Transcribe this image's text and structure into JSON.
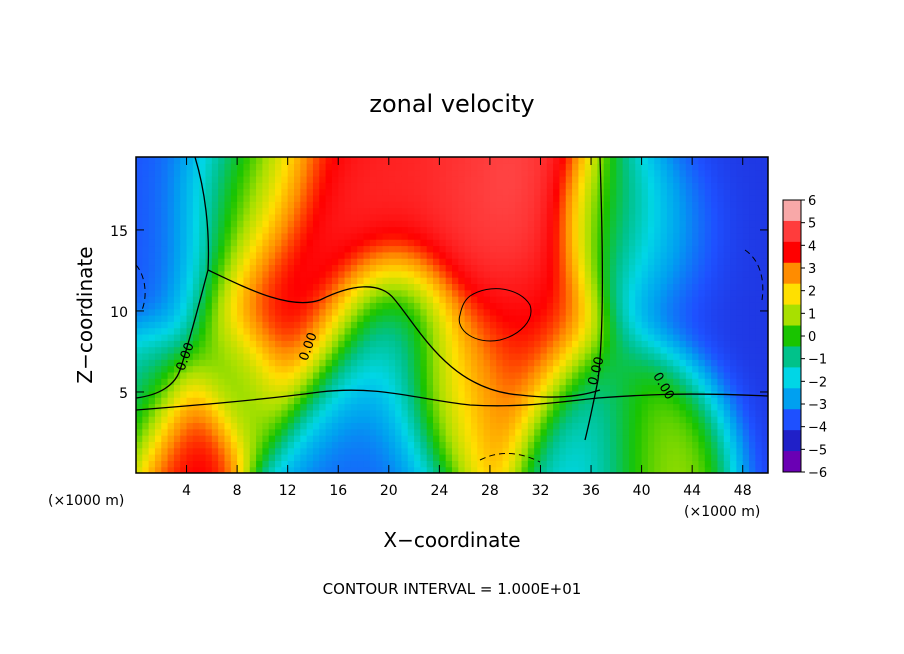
{
  "chart_data": {
    "type": "heatmap",
    "title": "zonal velocity",
    "xlabel": "X−coordinate",
    "ylabel": "Z−coordinate",
    "x_units_left": "(×1000 m)",
    "x_units_right": "(×1000 m)",
    "xlim": [
      0,
      50
    ],
    "ylim": [
      0,
      19.5
    ],
    "x_ticks": [
      4,
      8,
      12,
      16,
      20,
      24,
      28,
      32,
      36,
      40,
      44,
      48
    ],
    "y_ticks": [
      5,
      10,
      15
    ],
    "colorbar": {
      "ticks": [
        "6",
        "5",
        "4",
        "3",
        "2",
        "1",
        "0",
        "−1",
        "−2",
        "−3",
        "−4",
        "−5",
        "−6"
      ],
      "range": [
        -6,
        6
      ],
      "colors": [
        "#f8a8a8",
        "#ff3c3c",
        "#ff0000",
        "#ff8c00",
        "#ffe000",
        "#a8e000",
        "#19c400",
        "#00c28a",
        "#00d6e6",
        "#00a0f0",
        "#1e50ff",
        "#2020c8",
        "#6a00b4"
      ]
    },
    "contour_labels": [
      "0.00",
      "0.00",
      "0.00",
      "0.00"
    ],
    "footer": "CONTOUR INTERVAL = 1.000E+01",
    "blobs": [
      {
        "x": 3,
        "z": 19,
        "v": -4,
        "r": 9
      },
      {
        "x": 9,
        "z": 18,
        "v": 0.5,
        "r": 4
      },
      {
        "x": 14,
        "z": 16,
        "v": 5.5,
        "r": 6
      },
      {
        "x": 22,
        "z": 18,
        "v": 4.5,
        "r": 9
      },
      {
        "x": 30,
        "z": 17,
        "v": 5.5,
        "r": 6
      },
      {
        "x": 38,
        "z": 16,
        "v": 0.5,
        "r": 3.5
      },
      {
        "x": 41,
        "z": 15,
        "v": -2,
        "r": 4
      },
      {
        "x": 46,
        "z": 15,
        "v": -4.5,
        "r": 8
      },
      {
        "x": 12,
        "z": 10,
        "v": 5,
        "r": 5
      },
      {
        "x": 20,
        "z": 9,
        "v": -3,
        "r": 4
      },
      {
        "x": 18,
        "z": 4,
        "v": -4,
        "r": 5
      },
      {
        "x": 25,
        "z": 6,
        "v": 2,
        "r": 4
      },
      {
        "x": 31,
        "z": 8,
        "v": 4,
        "r": 5
      },
      {
        "x": 36,
        "z": 3,
        "v": -3,
        "r": 4
      },
      {
        "x": 40,
        "z": 3,
        "v": 1.5,
        "r": 4
      },
      {
        "x": 4,
        "z": 3,
        "v": 4.5,
        "r": 3
      },
      {
        "x": 1,
        "z": 5,
        "v": -1,
        "r": 3
      },
      {
        "x": 8,
        "z": 6,
        "v": 0,
        "r": 3
      }
    ]
  }
}
